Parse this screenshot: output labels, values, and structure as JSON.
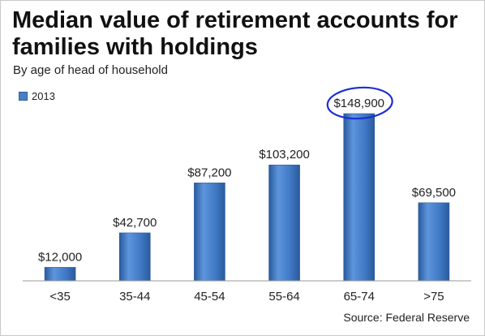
{
  "chart_data": {
    "type": "bar",
    "title": "Median value of retirement accounts for families with holdings",
    "subtitle": "By age of head of household",
    "categories": [
      "<35",
      "35-44",
      "45-54",
      "55-64",
      "65-74",
      ">75"
    ],
    "series": [
      {
        "name": "2013",
        "values": [
          12000,
          42700,
          87200,
          103200,
          148900,
          69500
        ],
        "labels": [
          "$12,000",
          "$42,700",
          "$87,200",
          "$103,200",
          "$148,900",
          "$69,500"
        ]
      }
    ],
    "highlighted_category": "65-74",
    "ylim": [
      0,
      148900
    ],
    "grid": false,
    "legend_position": "top-left",
    "source": "Source: Federal Reserve",
    "colors": {
      "bar": "#3f78c4",
      "bar_dark": "#2a5a9c",
      "highlight_circle": "#1c2fd1"
    }
  }
}
